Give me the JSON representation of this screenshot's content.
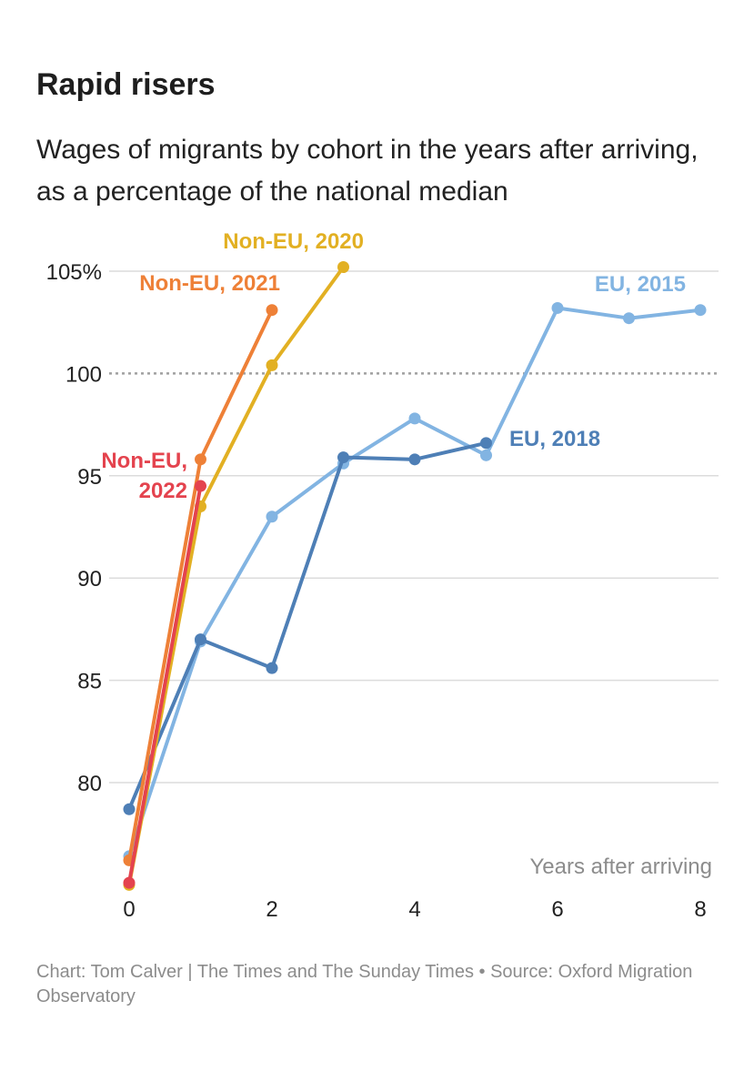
{
  "title": "Rapid risers",
  "subtitle": "Wages of migrants by cohort in the years after arriving, as a percentage of the national median",
  "footer": "Chart: Tom Calver | The Times and The Sunday Times • Source: Oxford Migration Observatory",
  "chart_data": {
    "type": "line",
    "title": "Rapid risers",
    "subtitle": "Wages of migrants by cohort in the years after arriving, as a percentage of the national median",
    "xlabel": "Years after arriving",
    "ylabel": "",
    "xlim": [
      0,
      8
    ],
    "ylim": [
      75,
      105
    ],
    "x_ticks": [
      0,
      2,
      4,
      6,
      8
    ],
    "y_ticks": [
      80,
      85,
      90,
      95,
      100,
      105
    ],
    "y_tick_labels": [
      "80",
      "85",
      "90",
      "95",
      "100",
      "105%"
    ],
    "reference_line": 100,
    "grid": true,
    "series": [
      {
        "name": "EU, 2015",
        "label": "EU, 2015",
        "color": "#82b4e2",
        "x": [
          0,
          1,
          2,
          3,
          4,
          5,
          6,
          7,
          8
        ],
        "values": [
          76.4,
          86.9,
          93.0,
          95.6,
          97.8,
          96.0,
          103.2,
          102.7,
          103.1
        ]
      },
      {
        "name": "EU, 2018",
        "label": "EU, 2018",
        "color": "#4e7fb6",
        "x": [
          0,
          1,
          2,
          3,
          4,
          5
        ],
        "values": [
          78.7,
          87.0,
          85.6,
          95.9,
          95.8,
          96.6
        ]
      },
      {
        "name": "Non-EU, 2020",
        "label": "Non-EU, 2020",
        "color": "#e2b023",
        "x": [
          0,
          1,
          2,
          3
        ],
        "values": [
          75.0,
          93.5,
          100.4,
          105.2
        ]
      },
      {
        "name": "Non-EU, 2021",
        "label": "Non-EU, 2021",
        "color": "#ee8037",
        "x": [
          0,
          1,
          2
        ],
        "values": [
          76.2,
          95.8,
          103.1
        ]
      },
      {
        "name": "Non-EU, 2022",
        "label_lines": [
          "Non-EU,",
          "2022"
        ],
        "color": "#e4434e",
        "x": [
          0,
          1
        ],
        "values": [
          75.1,
          94.5
        ]
      }
    ]
  }
}
